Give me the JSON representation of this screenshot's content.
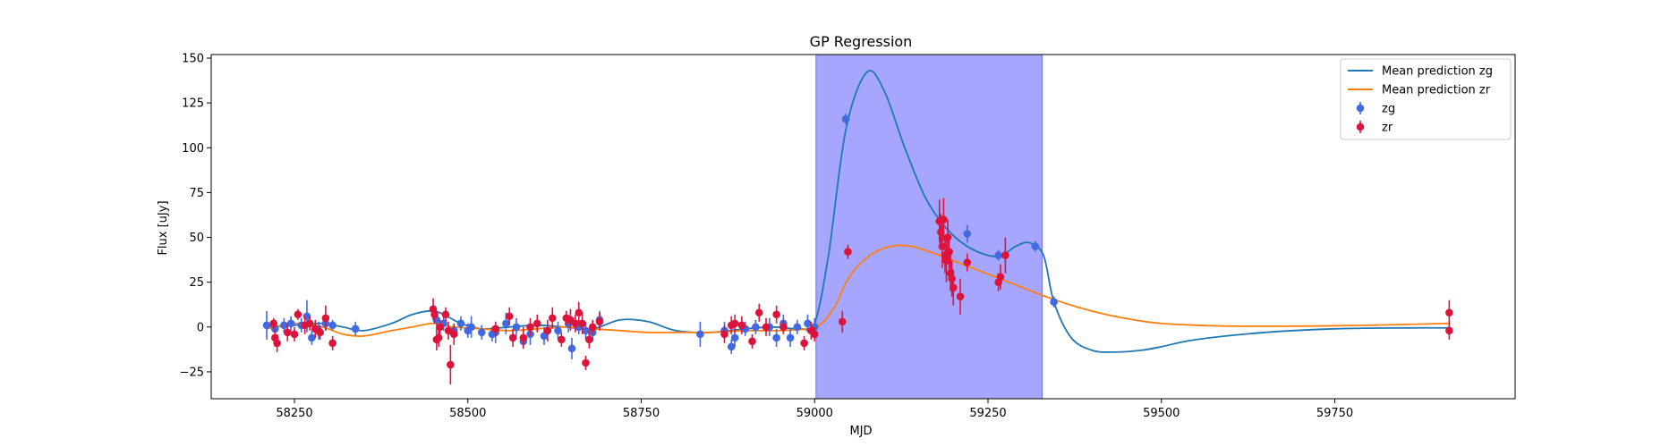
{
  "chart_data": {
    "type": "scatter",
    "title": "GP Regression",
    "xlabel": "MJD",
    "ylabel": "Flux [uJy]",
    "xlim": [
      58130,
      60010
    ],
    "ylim": [
      -40,
      152
    ],
    "xticks": [
      58250,
      58500,
      58750,
      59000,
      59250,
      59500,
      59750
    ],
    "yticks": [
      -25,
      0,
      25,
      50,
      75,
      100,
      125,
      150
    ],
    "grid": false,
    "legend_position": "top-right",
    "shaded_region": {
      "x": [
        59002,
        59328
      ],
      "color": "#a6a6ff"
    },
    "lines": [
      {
        "name": "Mean prediction zg",
        "color": "#1f77b4",
        "x": [
          58210,
          58250,
          58290,
          58320,
          58350,
          58390,
          58420,
          58450,
          58470,
          58490,
          58520,
          58560,
          58600,
          58640,
          58680,
          58720,
          58760,
          58800,
          58850,
          58900,
          58940,
          58980,
          59000,
          59020,
          59045,
          59075,
          59100,
          59130,
          59160,
          59190,
          59220,
          59250,
          59270,
          59290,
          59310,
          59330,
          59345,
          59370,
          59400,
          59430,
          59470,
          59500,
          59550,
          59650,
          59750,
          59850,
          59915
        ],
        "y": [
          0,
          1,
          2,
          0,
          -2,
          2,
          7,
          9,
          6,
          2,
          -1,
          0,
          1,
          0,
          -1,
          4,
          3,
          -2,
          -3,
          -1,
          0,
          -1,
          2,
          40,
          110,
          142,
          132,
          100,
          72,
          55,
          45,
          40,
          40,
          45,
          47,
          40,
          14,
          -6,
          -13,
          -14,
          -13,
          -11,
          -7,
          -3,
          -1,
          -0.5,
          -0.5
        ]
      },
      {
        "name": "Mean prediction zr",
        "color": "#ff7f0e",
        "x": [
          58210,
          58250,
          58290,
          58320,
          58350,
          58390,
          58420,
          58450,
          58480,
          58520,
          58560,
          58600,
          58640,
          58680,
          58720,
          58760,
          58800,
          58850,
          58900,
          58950,
          58990,
          59010,
          59030,
          59050,
          59080,
          59110,
          59140,
          59180,
          59220,
          59260,
          59300,
          59340,
          59380,
          59420,
          59460,
          59500,
          59550,
          59600,
          59700,
          59800,
          59915
        ],
        "y": [
          -1,
          2,
          0,
          -4,
          -5,
          -2,
          0,
          2,
          0,
          -1,
          -2,
          -1,
          0,
          -1,
          -2,
          -3,
          -3,
          -3,
          -2,
          -2,
          -1,
          2,
          12,
          28,
          40,
          45,
          45,
          40,
          34,
          28,
          22,
          16,
          11,
          7,
          4,
          2,
          1,
          0.5,
          0.5,
          1,
          2
        ]
      }
    ],
    "scatter": [
      {
        "name": "zg",
        "color": "#4169e1",
        "points": [
          [
            58210,
            1,
            8
          ],
          [
            58222,
            -1,
            5
          ],
          [
            58235,
            1,
            4
          ],
          [
            58245,
            2,
            4
          ],
          [
            58260,
            1,
            4
          ],
          [
            58268,
            6,
            9
          ],
          [
            58275,
            -6,
            4
          ],
          [
            58285,
            -2,
            5
          ],
          [
            58295,
            2,
            4
          ],
          [
            58305,
            1,
            3
          ],
          [
            58338,
            -1,
            4
          ],
          [
            58455,
            4,
            5
          ],
          [
            58465,
            2,
            4
          ],
          [
            58480,
            -2,
            3
          ],
          [
            58490,
            2,
            4
          ],
          [
            58500,
            -2,
            4
          ],
          [
            58505,
            0,
            6
          ],
          [
            58520,
            -3,
            4
          ],
          [
            58535,
            -4,
            4
          ],
          [
            58540,
            -3,
            6
          ],
          [
            58555,
            2,
            6
          ],
          [
            58570,
            0,
            5
          ],
          [
            58580,
            -8,
            4
          ],
          [
            58590,
            -4,
            6
          ],
          [
            58610,
            -5,
            5
          ],
          [
            58630,
            -2,
            5
          ],
          [
            58645,
            2,
            5
          ],
          [
            58650,
            -12,
            6
          ],
          [
            58660,
            0,
            4
          ],
          [
            58670,
            -2,
            5
          ],
          [
            58680,
            -3,
            5
          ],
          [
            58690,
            4,
            5
          ],
          [
            58835,
            -4,
            7
          ],
          [
            58870,
            -2,
            5
          ],
          [
            58880,
            -11,
            4
          ],
          [
            58885,
            -6,
            5
          ],
          [
            58900,
            -1,
            4
          ],
          [
            58915,
            0,
            4
          ],
          [
            58935,
            0,
            5
          ],
          [
            58945,
            -6,
            5
          ],
          [
            58955,
            2,
            5
          ],
          [
            58965,
            -6,
            5
          ],
          [
            58975,
            0,
            4
          ],
          [
            58990,
            2,
            5
          ],
          [
            59000,
            0,
            5
          ],
          [
            59045,
            116,
            3
          ],
          [
            59220,
            52,
            5
          ],
          [
            59265,
            40,
            3
          ],
          [
            59318,
            45,
            3
          ],
          [
            59345,
            14,
            3
          ]
        ]
      },
      {
        "name": "zr",
        "color": "#dc143c",
        "points": [
          [
            58220,
            2,
            3
          ],
          [
            58222,
            -6,
            5
          ],
          [
            58225,
            -9,
            5
          ],
          [
            58240,
            -3,
            5
          ],
          [
            58250,
            -4,
            4
          ],
          [
            58255,
            7,
            3
          ],
          [
            58265,
            1,
            5
          ],
          [
            58272,
            2,
            4
          ],
          [
            58280,
            -1,
            5
          ],
          [
            58287,
            -3,
            4
          ],
          [
            58295,
            5,
            7
          ],
          [
            58305,
            -9,
            4
          ],
          [
            58450,
            10,
            6
          ],
          [
            58452,
            7,
            5
          ],
          [
            58455,
            -7,
            6
          ],
          [
            58458,
            -6,
            5
          ],
          [
            58460,
            0,
            4
          ],
          [
            58468,
            7,
            4
          ],
          [
            58472,
            -2,
            5
          ],
          [
            58475,
            -21,
            11
          ],
          [
            58480,
            -4,
            6
          ],
          [
            58540,
            -1,
            4
          ],
          [
            58560,
            6,
            5
          ],
          [
            58565,
            -6,
            5
          ],
          [
            58580,
            -6,
            6
          ],
          [
            58590,
            0,
            5
          ],
          [
            58600,
            2,
            5
          ],
          [
            58615,
            -2,
            6
          ],
          [
            58622,
            5,
            6
          ],
          [
            58635,
            -7,
            4
          ],
          [
            58642,
            5,
            4
          ],
          [
            58648,
            4,
            6
          ],
          [
            58655,
            2,
            5
          ],
          [
            58660,
            8,
            6
          ],
          [
            58665,
            2,
            6
          ],
          [
            58670,
            -20,
            4
          ],
          [
            58675,
            -7,
            5
          ],
          [
            58680,
            0,
            4
          ],
          [
            58690,
            3,
            5
          ],
          [
            58870,
            -4,
            5
          ],
          [
            58880,
            1,
            5
          ],
          [
            58885,
            2,
            5
          ],
          [
            58895,
            1,
            5
          ],
          [
            58910,
            -8,
            4
          ],
          [
            58920,
            8,
            5
          ],
          [
            58930,
            0,
            5
          ],
          [
            58945,
            7,
            5
          ],
          [
            58955,
            0,
            4
          ],
          [
            58985,
            -9,
            4
          ],
          [
            58995,
            -2,
            5
          ],
          [
            59000,
            -4,
            4
          ],
          [
            59040,
            3,
            6
          ],
          [
            59048,
            42,
            4
          ],
          [
            59180,
            59,
            12
          ],
          [
            59182,
            53,
            10
          ],
          [
            59184,
            45,
            12
          ],
          [
            59186,
            60,
            12
          ],
          [
            59188,
            40,
            10
          ],
          [
            59190,
            37,
            12
          ],
          [
            59192,
            50,
            10
          ],
          [
            59194,
            42,
            10
          ],
          [
            59196,
            30,
            10
          ],
          [
            59198,
            27,
            10
          ],
          [
            59200,
            22,
            10
          ],
          [
            59210,
            17,
            10
          ],
          [
            59220,
            36,
            5
          ],
          [
            59265,
            25,
            5
          ],
          [
            59268,
            28,
            7
          ],
          [
            59275,
            40,
            10
          ],
          [
            59915,
            8,
            7
          ],
          [
            59915,
            -2,
            5
          ]
        ]
      }
    ],
    "legend": [
      {
        "label": "Mean prediction zg",
        "kind": "line",
        "color": "#1f77b4"
      },
      {
        "label": "Mean prediction zr",
        "kind": "line",
        "color": "#ff7f0e"
      },
      {
        "label": "zg",
        "kind": "errorbar",
        "color": "#4169e1"
      },
      {
        "label": "zr",
        "kind": "errorbar",
        "color": "#dc143c"
      }
    ]
  }
}
